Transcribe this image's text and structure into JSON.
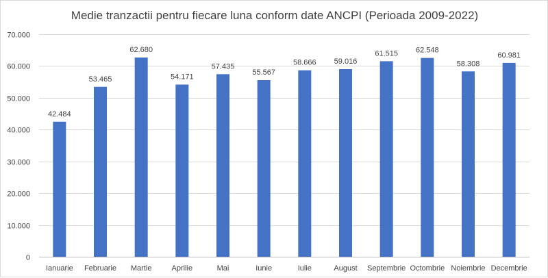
{
  "chart_data": {
    "type": "bar",
    "title": "Medie tranzactii pentru fiecare luna conform date ANCPI (Perioada 2009-2022)",
    "xlabel": "",
    "ylabel": "",
    "categories": [
      "Ianuarie",
      "Februarie",
      "Martie",
      "Aprilie",
      "Mai",
      "Iunie",
      "Iulie",
      "August",
      "Septembrie",
      "Octombrie",
      "Noiembrie",
      "Decembrie"
    ],
    "values": [
      42484,
      53465,
      62680,
      54171,
      57435,
      55567,
      58666,
      59016,
      61515,
      62548,
      58308,
      60981
    ],
    "value_labels": [
      "42.484",
      "53.465",
      "62.680",
      "54.171",
      "57.435",
      "55.567",
      "58.666",
      "59.016",
      "61.515",
      "62.548",
      "58.308",
      "60.981"
    ],
    "ylim": [
      0,
      70000
    ],
    "yticks": [
      0,
      10000,
      20000,
      30000,
      40000,
      50000,
      60000,
      70000
    ],
    "ytick_labels": [
      "0",
      "10.000",
      "20.000",
      "30.000",
      "40.000",
      "50.000",
      "60.000",
      "70.000"
    ],
    "grid": true,
    "legend": "none",
    "bar_color": "#4472c4"
  }
}
